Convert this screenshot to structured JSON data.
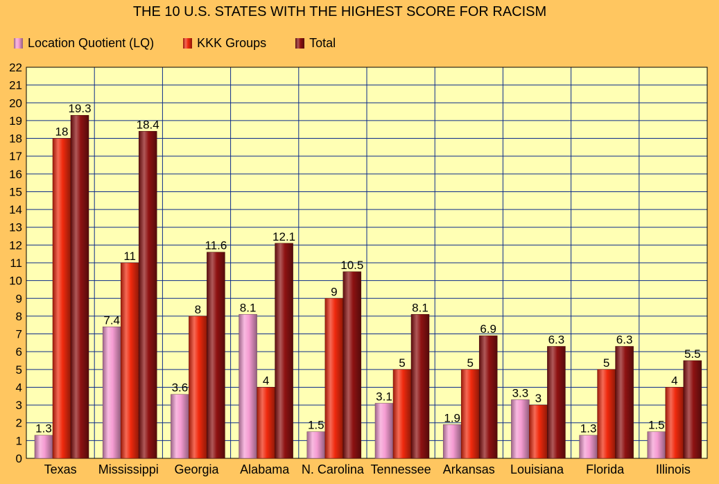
{
  "chart_data": {
    "type": "bar",
    "title": "THE 10 U.S. STATES WITH THE HIGHEST SCORE FOR RACISM",
    "xlabel": "",
    "ylabel": "",
    "ylim": [
      0,
      22
    ],
    "ytick_step": 1,
    "grid": true,
    "legend_position": "top-left",
    "categories": [
      "Texas",
      "Mississippi",
      "Georgia",
      "Alabama",
      "N. Carolina",
      "Tennessee",
      "Arkansas",
      "Louisiana",
      "Florida",
      "Illinois"
    ],
    "series": [
      {
        "name": "Location Quotient (LQ)",
        "color": "#F59CD2",
        "values": [
          1.3,
          7.4,
          3.6,
          8.1,
          1.5,
          3.1,
          1.9,
          3.3,
          1.3,
          1.5
        ]
      },
      {
        "name": "KKK Groups",
        "color": "#F02A0E",
        "values": [
          18,
          11,
          8,
          4,
          9,
          5,
          5,
          3,
          5,
          4
        ]
      },
      {
        "name": "Total",
        "color": "#8E1212",
        "values": [
          19.3,
          18.4,
          11.6,
          12.1,
          10.5,
          8.1,
          6.9,
          6.3,
          6.3,
          5.5
        ]
      }
    ]
  },
  "colors": {
    "background": "#FFC660",
    "plot_background": "#FFFFB4",
    "gridline": "#0A2A8A"
  }
}
